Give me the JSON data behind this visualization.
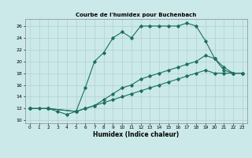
{
  "title": "Courbe de l'humidex pour Buchenbach",
  "xlabel": "Humidex (Indice chaleur)",
  "background_color": "#cce9e9",
  "grid_color": "#b0d0d0",
  "line_color": "#1a7060",
  "xlim": [
    -0.5,
    23.5
  ],
  "ylim": [
    9.5,
    27.2
  ],
  "xticks": [
    0,
    1,
    2,
    3,
    4,
    5,
    6,
    7,
    8,
    9,
    10,
    11,
    12,
    13,
    14,
    15,
    16,
    17,
    18,
    19,
    20,
    21,
    22,
    23
  ],
  "yticks": [
    10,
    12,
    14,
    16,
    18,
    20,
    22,
    24,
    26
  ],
  "series1_x": [
    0,
    1,
    2,
    3,
    4,
    5,
    6,
    7,
    8,
    9,
    10,
    11,
    12,
    13,
    14,
    15,
    16,
    17,
    18,
    19,
    20,
    21,
    22,
    23
  ],
  "series1_y": [
    12,
    12,
    12,
    11.5,
    11,
    11.5,
    15.5,
    20,
    21.5,
    24,
    25,
    24,
    26,
    26,
    26,
    26,
    26,
    26.5,
    26,
    23.5,
    20.5,
    18.5,
    18,
    18
  ],
  "series2_x": [
    0,
    2,
    5,
    6,
    7,
    8,
    9,
    10,
    11,
    12,
    13,
    14,
    15,
    16,
    17,
    18,
    19,
    20,
    21,
    22,
    23
  ],
  "series2_y": [
    12,
    12,
    11.5,
    12,
    12.5,
    13,
    13.5,
    14,
    14.5,
    15,
    15.5,
    16,
    16.5,
    17,
    17.5,
    18,
    18.5,
    18,
    18,
    18,
    18
  ],
  "series3_x": [
    0,
    2,
    5,
    6,
    7,
    8,
    9,
    10,
    11,
    12,
    13,
    14,
    15,
    16,
    17,
    18,
    19,
    20,
    21,
    22,
    23
  ],
  "series3_y": [
    12,
    12,
    11.5,
    12,
    12.5,
    13.5,
    14.5,
    15.5,
    16,
    17,
    17.5,
    18,
    18.5,
    19,
    19.5,
    20,
    21,
    20.5,
    19,
    18,
    18
  ]
}
